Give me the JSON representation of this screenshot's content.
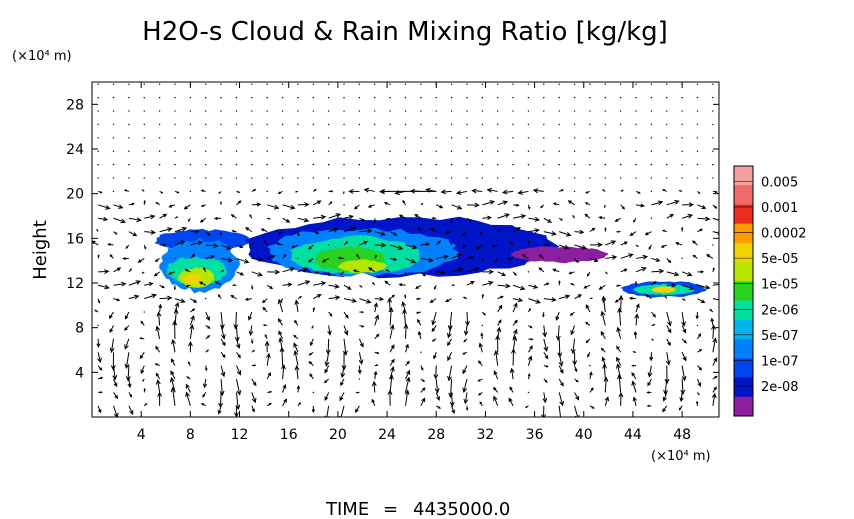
{
  "chart_data": {
    "type": "heatmap",
    "title": "H2O-s Cloud & Rain Mixing Ratio [kg/kg]",
    "ylabel": "Height",
    "y_unit": "(×10⁴ m)",
    "x_unit": "(×10⁴ m)",
    "xlim": [
      0,
      51
    ],
    "ylim": [
      0,
      30
    ],
    "x_ticks": [
      4,
      8,
      12,
      16,
      20,
      24,
      28,
      32,
      36,
      40,
      44,
      48
    ],
    "y_ticks": [
      4,
      8,
      12,
      16,
      20,
      24,
      28
    ],
    "x_tick_labels": [
      "4",
      "8",
      "12",
      "16",
      "20",
      "24",
      "28",
      "32",
      "36",
      "40",
      "44",
      "48"
    ],
    "y_tick_labels": [
      "4",
      "8",
      "12",
      "16",
      "20",
      "24",
      "28"
    ],
    "colorbar": {
      "labels": [
        "0.005",
        "0.001",
        "0.0002",
        "5e-05",
        "1e-05",
        "2e-06",
        "5e-07",
        "1e-07",
        "2e-08"
      ],
      "colors": [
        "#f4a0a0",
        "#f06a6a",
        "#ee2a1e",
        "#ff9a00",
        "#f2d200",
        "#b4e600",
        "#28d21e",
        "#00e0a0",
        "#00b4f0",
        "#0082ff",
        "#0046f0",
        "#0014c8",
        "#8c1ea0"
      ]
    },
    "cloud_regions": [
      {
        "level": 5,
        "color_index": 10,
        "x": [
          5,
          13
        ],
        "y": [
          14.8,
          16.8
        ]
      },
      {
        "level": 6,
        "color_index": 9,
        "x": [
          5.5,
          12
        ],
        "y": [
          11.2,
          16.1
        ]
      },
      {
        "level": 8,
        "color_index": 7,
        "x": [
          6,
          11
        ],
        "y": [
          11.8,
          14.4
        ]
      },
      {
        "level": 10,
        "color_index": 5,
        "x": [
          7,
          10
        ],
        "y": [
          11.6,
          13.4
        ]
      },
      {
        "level": 11,
        "color_index": 4,
        "x": [
          7.5,
          9
        ],
        "y": [
          11.9,
          12.8
        ]
      },
      {
        "level": 5,
        "color_index": 11,
        "x": [
          12,
          38
        ],
        "y": [
          12.5,
          18.0
        ]
      },
      {
        "level": 6,
        "color_index": 9,
        "x": [
          14,
          30
        ],
        "y": [
          12.6,
          17.0
        ]
      },
      {
        "level": 7,
        "color_index": 7,
        "x": [
          16,
          27
        ],
        "y": [
          12.8,
          16.2
        ]
      },
      {
        "level": 9,
        "color_index": 6,
        "x": [
          18,
          24
        ],
        "y": [
          13.0,
          15.3
        ]
      },
      {
        "level": 10,
        "color_index": 5,
        "x": [
          20,
          24
        ],
        "y": [
          12.9,
          14.1
        ]
      },
      {
        "level": 4,
        "color_index": 12,
        "x": [
          34,
          42
        ],
        "y": [
          13.8,
          15.3
        ]
      },
      {
        "level": 5,
        "color_index": 10,
        "x": [
          43,
          50
        ],
        "y": [
          10.7,
          12.2
        ]
      },
      {
        "level": 6,
        "color_index": 7,
        "x": [
          44,
          49
        ],
        "y": [
          10.9,
          11.9
        ]
      },
      {
        "level": 8,
        "color_index": 4,
        "x": [
          45.5,
          47.5
        ],
        "y": [
          11.1,
          11.7
        ]
      }
    ],
    "wind_vectors": "quiver field of velocity arrows over the domain"
  },
  "footer": {
    "time_label": "TIME",
    "equals": "=",
    "time_value": "4435000.0"
  }
}
